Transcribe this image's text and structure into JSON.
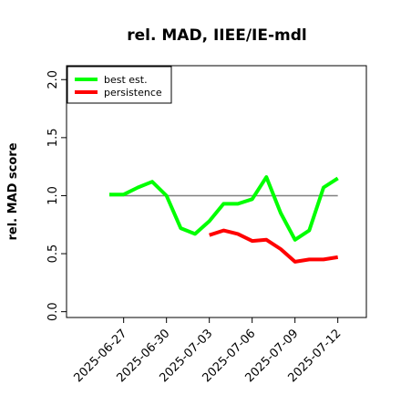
{
  "chart_data": {
    "type": "line",
    "title": "rel. MAD, IIEE/IE-mdl",
    "xlabel": "",
    "ylabel": "rel. MAD score",
    "x": [
      "2025-06-26",
      "2025-06-27",
      "2025-06-28",
      "2025-06-29",
      "2025-06-30",
      "2025-07-01",
      "2025-07-02",
      "2025-07-03",
      "2025-07-04",
      "2025-07-05",
      "2025-07-06",
      "2025-07-07",
      "2025-07-08",
      "2025-07-09",
      "2025-07-10",
      "2025-07-11",
      "2025-07-12"
    ],
    "xticks": [
      "2025-06-27",
      "2025-06-30",
      "2025-07-03",
      "2025-07-06",
      "2025-07-09",
      "2025-07-12"
    ],
    "xlim": [
      "2025-06-23",
      "2025-07-14"
    ],
    "ylim": [
      -0.05,
      2.12
    ],
    "yticks": [
      "0.0",
      "0.5",
      "1.0",
      "1.5",
      "2.0"
    ],
    "reference_line": 1.0,
    "grid": false,
    "legend_position": "top-left",
    "series": [
      {
        "name": "best est.",
        "color": "#00ff00",
        "values": [
          1.01,
          1.01,
          1.07,
          1.12,
          1.0,
          0.72,
          0.67,
          0.78,
          0.93,
          0.93,
          0.97,
          1.16,
          0.85,
          0.62,
          0.7,
          1.07,
          1.15
        ]
      },
      {
        "name": "persistence",
        "color": "#ff0000",
        "values": [
          null,
          null,
          null,
          null,
          null,
          null,
          null,
          0.66,
          0.7,
          0.67,
          0.61,
          0.62,
          0.54,
          0.43,
          0.45,
          0.45,
          0.47
        ]
      }
    ]
  }
}
